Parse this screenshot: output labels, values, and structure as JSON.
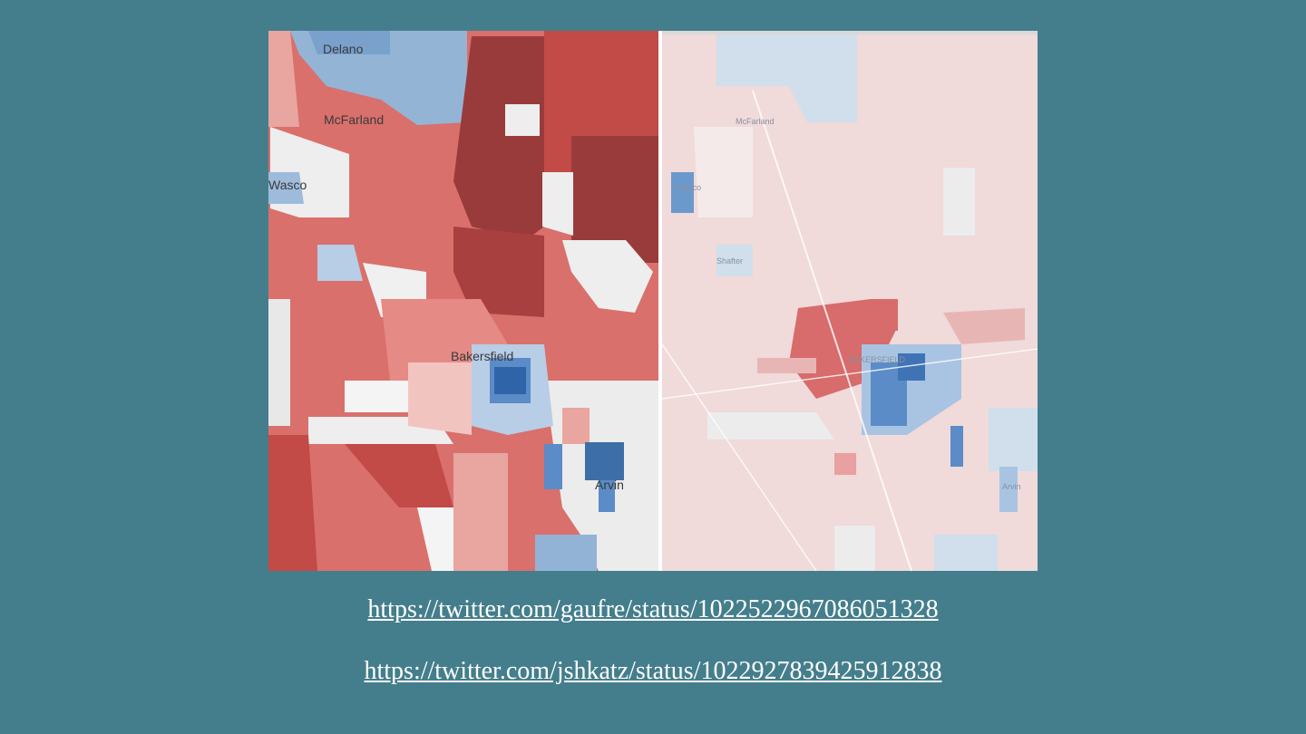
{
  "left_map": {
    "labels": [
      "Delano",
      "McFarland",
      "Wasco",
      "Bakersfield",
      "Arvin"
    ]
  },
  "right_map": {
    "labels": [
      "McFarland",
      "Wasco",
      "Shafter",
      "BAKERSFIELD",
      "Arvin"
    ]
  },
  "links": [
    "https://twitter.com/gaufre/status/1022522967086051328",
    "https://twitter.com/jshkatz/status/1022927839425912838"
  ]
}
